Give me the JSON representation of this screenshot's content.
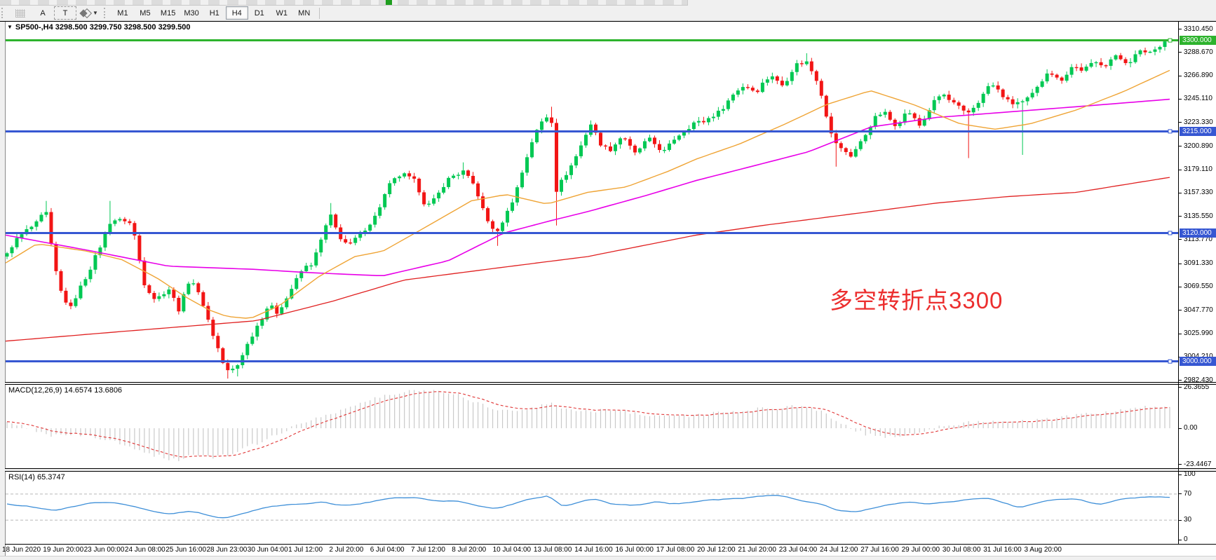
{
  "toolbar": {
    "drawing_buttons": [
      {
        "label": "A",
        "name": "text-label-button"
      },
      {
        "label": "T",
        "name": "text-box-button"
      }
    ],
    "shapes_caret": "▼",
    "timeframes": [
      "M1",
      "M5",
      "M15",
      "M30",
      "H1",
      "H4",
      "D1",
      "W1",
      "MN"
    ],
    "active_timeframe": "H4"
  },
  "chart": {
    "title": "SP500-,H4  3298.500 3299.750 3298.500 3299.500",
    "symbol_period": "SP500-,H4",
    "quote_open": "3298.500",
    "quote_high": "3299.750",
    "quote_low": "3298.500",
    "quote_close": "3299.500",
    "annotation": {
      "text": "多空转折点3300",
      "color": "#ec2e2e"
    }
  },
  "indicators": {
    "macd": {
      "label": "MACD(12,26,9) 14.6574 13.6806",
      "axis": [
        [
          "26.3655",
          26.3655
        ],
        [
          "0.00",
          0
        ],
        [
          "-23.4467",
          -23.4467
        ]
      ]
    },
    "rsi": {
      "label": "RSI(14) 65.3747",
      "axis": [
        [
          "100",
          100
        ],
        [
          "70",
          70
        ],
        [
          "30",
          30
        ],
        [
          "0",
          0
        ]
      ],
      "level_lines": [
        70,
        30
      ]
    }
  },
  "colors": {
    "candle_up": "#00c853",
    "candle_down": "#f21515",
    "ma_red": "#e02020",
    "ma_magenta": "#e800e8",
    "ma_orange": "#efa435",
    "level_green": "#2db32d",
    "level_blue": "#3657d2",
    "macd_bar": "#c9c9c9",
    "macd_signal": "#e03535",
    "rsi_line": "#3e8fd8",
    "rsi_level": "#b8b8b8"
  },
  "price_axis": {
    "ticks": [
      "3310.450",
      "3288.670",
      "3266.890",
      "3245.110",
      "3223.330",
      "3200.890",
      "3179.110",
      "3157.330",
      "3135.550",
      "3113.770",
      "3091.330",
      "3069.550",
      "3047.770",
      "3025.990",
      "3004.210",
      "2982.430"
    ],
    "levels": [
      {
        "label": "3300.000",
        "price": 3300,
        "color": "#2db32d"
      },
      {
        "label": "3215.000",
        "price": 3215,
        "color": "#3657d2"
      },
      {
        "label": "3120.000",
        "price": 3120,
        "color": "#3657d2"
      },
      {
        "label": "3000.000",
        "price": 3000,
        "color": "#3657d2"
      }
    ]
  },
  "time_axis": [
    "18 Jun 2020",
    "19 Jun 20:00",
    "23 Jun 00:00",
    "24 Jun 08:00",
    "25 Jun 16:00",
    "28 Jun 23:00",
    "30 Jun 04:00",
    "1 Jul 12:00",
    "2 Jul 20:00",
    "6 Jul 04:00",
    "7 Jul 12:00",
    "8 Jul 20:00",
    "10 Jul 04:00",
    "13 Jul 08:00",
    "14 Jul 16:00",
    "16 Jul 00:00",
    "17 Jul 08:00",
    "20 Jul 12:00",
    "21 Jul 20:00",
    "23 Jul 04:00",
    "24 Jul 12:00",
    "27 Jul 16:00",
    "29 Jul 00:00",
    "30 Jul 08:00",
    "31 Jul 16:00",
    "3 Aug 20:00"
  ],
  "chart_data": {
    "type": "candlestick",
    "symbol": "SP500-",
    "timeframe": "H4",
    "num_candles": 238,
    "price_range_visible": [
      2982.43,
      3310.45
    ],
    "last_candle": {
      "open": 3298.5,
      "high": 3299.75,
      "low": 3298.5,
      "close": 3299.5
    },
    "close_path_anchors": [
      [
        0,
        3100
      ],
      [
        0.008,
        3112
      ],
      [
        0.018,
        3126
      ],
      [
        0.028,
        3130
      ],
      [
        0.033,
        3142
      ],
      [
        0.04,
        3095
      ],
      [
        0.048,
        3060
      ],
      [
        0.055,
        3048
      ],
      [
        0.065,
        3075
      ],
      [
        0.08,
        3105
      ],
      [
        0.09,
        3135
      ],
      [
        0.1,
        3132
      ],
      [
        0.108,
        3125
      ],
      [
        0.118,
        3075
      ],
      [
        0.128,
        3055
      ],
      [
        0.14,
        3070
      ],
      [
        0.148,
        3048
      ],
      [
        0.158,
        3078
      ],
      [
        0.168,
        3058
      ],
      [
        0.178,
        3020
      ],
      [
        0.188,
        2992
      ],
      [
        0.198,
        2996
      ],
      [
        0.205,
        3010
      ],
      [
        0.215,
        3035
      ],
      [
        0.225,
        3052
      ],
      [
        0.232,
        3044
      ],
      [
        0.245,
        3070
      ],
      [
        0.255,
        3085
      ],
      [
        0.262,
        3092
      ],
      [
        0.272,
        3120
      ],
      [
        0.278,
        3135
      ],
      [
        0.285,
        3118
      ],
      [
        0.295,
        3110
      ],
      [
        0.305,
        3118
      ],
      [
        0.318,
        3140
      ],
      [
        0.33,
        3165
      ],
      [
        0.34,
        3178
      ],
      [
        0.35,
        3168
      ],
      [
        0.36,
        3145
      ],
      [
        0.372,
        3158
      ],
      [
        0.382,
        3172
      ],
      [
        0.392,
        3180
      ],
      [
        0.402,
        3162
      ],
      [
        0.412,
        3135
      ],
      [
        0.422,
        3120
      ],
      [
        0.432,
        3142
      ],
      [
        0.443,
        3178
      ],
      [
        0.452,
        3205
      ],
      [
        0.462,
        3230
      ],
      [
        0.468,
        3232
      ],
      [
        0.472,
        3158
      ],
      [
        0.48,
        3172
      ],
      [
        0.49,
        3195
      ],
      [
        0.502,
        3220
      ],
      [
        0.51,
        3205
      ],
      [
        0.52,
        3198
      ],
      [
        0.53,
        3210
      ],
      [
        0.54,
        3196
      ],
      [
        0.552,
        3206
      ],
      [
        0.565,
        3198
      ],
      [
        0.578,
        3210
      ],
      [
        0.59,
        3225
      ],
      [
        0.6,
        3222
      ],
      [
        0.612,
        3235
      ],
      [
        0.625,
        3248
      ],
      [
        0.635,
        3260
      ],
      [
        0.645,
        3252
      ],
      [
        0.658,
        3268
      ],
      [
        0.668,
        3258
      ],
      [
        0.68,
        3278
      ],
      [
        0.688,
        3282
      ],
      [
        0.698,
        3258
      ],
      [
        0.708,
        3215
      ],
      [
        0.718,
        3198
      ],
      [
        0.726,
        3190
      ],
      [
        0.736,
        3210
      ],
      [
        0.745,
        3225
      ],
      [
        0.755,
        3232
      ],
      [
        0.765,
        3222
      ],
      [
        0.775,
        3232
      ],
      [
        0.785,
        3222
      ],
      [
        0.795,
        3238
      ],
      [
        0.805,
        3250
      ],
      [
        0.815,
        3242
      ],
      [
        0.825,
        3228
      ],
      [
        0.835,
        3244
      ],
      [
        0.845,
        3258
      ],
      [
        0.855,
        3250
      ],
      [
        0.865,
        3242
      ],
      [
        0.875,
        3240
      ],
      [
        0.885,
        3256
      ],
      [
        0.895,
        3270
      ],
      [
        0.905,
        3262
      ],
      [
        0.915,
        3276
      ],
      [
        0.925,
        3270
      ],
      [
        0.935,
        3282
      ],
      [
        0.945,
        3276
      ],
      [
        0.955,
        3286
      ],
      [
        0.965,
        3280
      ],
      [
        0.975,
        3288
      ],
      [
        0.985,
        3292
      ],
      [
        1,
        3299.5
      ]
    ],
    "wick_low_events": [
      [
        0.188,
        2984
      ],
      [
        0.198,
        2986
      ],
      [
        0.422,
        3108
      ],
      [
        0.472,
        3127
      ],
      [
        0.715,
        3182
      ],
      [
        0.825,
        3190
      ],
      [
        0.875,
        3193
      ]
    ],
    "wick_high_events": [
      [
        0.033,
        3150
      ],
      [
        0.09,
        3150
      ],
      [
        0.278,
        3148
      ],
      [
        0.392,
        3186
      ],
      [
        0.468,
        3238
      ],
      [
        0.688,
        3288
      ],
      [
        1,
        3300
      ]
    ],
    "ma_red_anchors": [
      [
        0,
        3019
      ],
      [
        0.1,
        3028
      ],
      [
        0.215,
        3038
      ],
      [
        0.28,
        3056
      ],
      [
        0.342,
        3076
      ],
      [
        0.42,
        3087
      ],
      [
        0.5,
        3098
      ],
      [
        0.593,
        3118
      ],
      [
        0.65,
        3127
      ],
      [
        0.7,
        3134
      ],
      [
        0.75,
        3141
      ],
      [
        0.8,
        3148
      ],
      [
        0.86,
        3154
      ],
      [
        0.92,
        3158
      ],
      [
        0.96,
        3165
      ],
      [
        1,
        3172
      ]
    ],
    "ma_magenta_anchors": [
      [
        0,
        3118
      ],
      [
        0.07,
        3104
      ],
      [
        0.14,
        3089
      ],
      [
        0.215,
        3086
      ],
      [
        0.26,
        3083
      ],
      [
        0.324,
        3080
      ],
      [
        0.38,
        3094
      ],
      [
        0.428,
        3120
      ],
      [
        0.47,
        3132
      ],
      [
        0.5,
        3140
      ],
      [
        0.55,
        3155
      ],
      [
        0.593,
        3169
      ],
      [
        0.64,
        3182
      ],
      [
        0.69,
        3196
      ],
      [
        0.743,
        3219
      ],
      [
        0.8,
        3228
      ],
      [
        0.86,
        3233
      ],
      [
        0.92,
        3238
      ],
      [
        1,
        3245
      ]
    ],
    "ma_orange_anchors": [
      [
        0,
        3092
      ],
      [
        0.027,
        3110
      ],
      [
        0.07,
        3103
      ],
      [
        0.1,
        3095
      ],
      [
        0.13,
        3078
      ],
      [
        0.155,
        3060
      ],
      [
        0.175,
        3048
      ],
      [
        0.19,
        3042
      ],
      [
        0.21,
        3040
      ],
      [
        0.235,
        3052
      ],
      [
        0.27,
        3080
      ],
      [
        0.3,
        3098
      ],
      [
        0.324,
        3103
      ],
      [
        0.36,
        3125
      ],
      [
        0.4,
        3150
      ],
      [
        0.43,
        3156
      ],
      [
        0.465,
        3147
      ],
      [
        0.5,
        3158
      ],
      [
        0.533,
        3163
      ],
      [
        0.57,
        3178
      ],
      [
        0.593,
        3189
      ],
      [
        0.63,
        3203
      ],
      [
        0.67,
        3222
      ],
      [
        0.705,
        3240
      ],
      [
        0.743,
        3253
      ],
      [
        0.78,
        3240
      ],
      [
        0.82,
        3222
      ],
      [
        0.85,
        3217
      ],
      [
        0.88,
        3222
      ],
      [
        0.92,
        3235
      ],
      [
        0.96,
        3252
      ],
      [
        1,
        3272
      ]
    ],
    "macd": {
      "current": 14.6574,
      "signal_current": 13.6806,
      "range": [
        -23.4467,
        26.3655
      ],
      "anchors": [
        [
          0,
          3
        ],
        [
          0.02,
          0
        ],
        [
          0.04,
          -5
        ],
        [
          0.06,
          -4
        ],
        [
          0.08,
          -7
        ],
        [
          0.1,
          -10
        ],
        [
          0.125,
          -17
        ],
        [
          0.145,
          -21
        ],
        [
          0.16,
          -17
        ],
        [
          0.18,
          -19
        ],
        [
          0.2,
          -15
        ],
        [
          0.22,
          -8
        ],
        [
          0.24,
          -1
        ],
        [
          0.26,
          5
        ],
        [
          0.28,
          10
        ],
        [
          0.3,
          15
        ],
        [
          0.32,
          20
        ],
        [
          0.345,
          24
        ],
        [
          0.37,
          25
        ],
        [
          0.39,
          21
        ],
        [
          0.41,
          15
        ],
        [
          0.43,
          11
        ],
        [
          0.45,
          13
        ],
        [
          0.465,
          16
        ],
        [
          0.48,
          13
        ],
        [
          0.5,
          11
        ],
        [
          0.52,
          12
        ],
        [
          0.54,
          10
        ],
        [
          0.56,
          8
        ],
        [
          0.58,
          8
        ],
        [
          0.6,
          9
        ],
        [
          0.62,
          10
        ],
        [
          0.64,
          12
        ],
        [
          0.66,
          13
        ],
        [
          0.68,
          14
        ],
        [
          0.7,
          11
        ],
        [
          0.715,
          5
        ],
        [
          0.73,
          -2
        ],
        [
          0.75,
          -6
        ],
        [
          0.77,
          -5
        ],
        [
          0.79,
          -1
        ],
        [
          0.81,
          2
        ],
        [
          0.83,
          4
        ],
        [
          0.85,
          5
        ],
        [
          0.87,
          4
        ],
        [
          0.89,
          5
        ],
        [
          0.91,
          7
        ],
        [
          0.93,
          9
        ],
        [
          0.95,
          11
        ],
        [
          0.97,
          13
        ],
        [
          1,
          14.66
        ]
      ]
    },
    "rsi": {
      "current": 65.3747,
      "range": [
        0,
        100
      ],
      "anchors": [
        [
          0,
          55
        ],
        [
          0.02,
          50
        ],
        [
          0.04,
          44
        ],
        [
          0.06,
          52
        ],
        [
          0.08,
          58
        ],
        [
          0.1,
          54
        ],
        [
          0.12,
          45
        ],
        [
          0.14,
          40
        ],
        [
          0.16,
          44
        ],
        [
          0.175,
          36
        ],
        [
          0.19,
          33
        ],
        [
          0.21,
          45
        ],
        [
          0.23,
          52
        ],
        [
          0.25,
          55
        ],
        [
          0.27,
          58
        ],
        [
          0.29,
          52
        ],
        [
          0.31,
          57
        ],
        [
          0.33,
          63
        ],
        [
          0.35,
          65
        ],
        [
          0.37,
          58
        ],
        [
          0.39,
          60
        ],
        [
          0.41,
          50
        ],
        [
          0.42,
          47
        ],
        [
          0.44,
          58
        ],
        [
          0.46,
          66
        ],
        [
          0.468,
          68
        ],
        [
          0.475,
          50
        ],
        [
          0.49,
          57
        ],
        [
          0.505,
          63
        ],
        [
          0.52,
          55
        ],
        [
          0.54,
          52
        ],
        [
          0.56,
          58
        ],
        [
          0.58,
          55
        ],
        [
          0.6,
          60
        ],
        [
          0.62,
          62
        ],
        [
          0.64,
          65
        ],
        [
          0.66,
          68
        ],
        [
          0.68,
          62
        ],
        [
          0.7,
          55
        ],
        [
          0.715,
          45
        ],
        [
          0.73,
          42
        ],
        [
          0.75,
          50
        ],
        [
          0.77,
          57
        ],
        [
          0.79,
          55
        ],
        [
          0.81,
          58
        ],
        [
          0.83,
          62
        ],
        [
          0.845,
          64
        ],
        [
          0.86,
          55
        ],
        [
          0.87,
          48
        ],
        [
          0.885,
          57
        ],
        [
          0.9,
          62
        ],
        [
          0.92,
          63
        ],
        [
          0.93,
          58
        ],
        [
          0.94,
          52
        ],
        [
          0.955,
          62
        ],
        [
          0.97,
          65
        ],
        [
          0.985,
          66
        ],
        [
          1,
          65.37
        ]
      ]
    }
  }
}
